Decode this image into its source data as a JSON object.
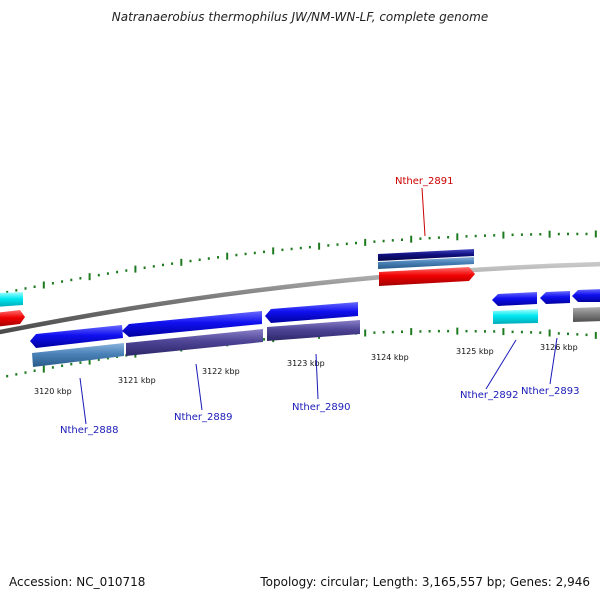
{
  "title": "Natranaerobius thermophilus JW/NM-WN-LF, complete genome",
  "footer": {
    "accession": "Accession: NC_010718",
    "topology": "Topology: circular; Length: 3,165,557 bp; Genes: 2,946"
  },
  "colors": {
    "backbone": "#8a8a8a",
    "tick": "#1e7a1e",
    "label_blue": "#1a1ab8",
    "label_red": "#cc0000"
  },
  "ticks": [
    {
      "label": "3120 kbp"
    },
    {
      "label": "3121 kbp"
    },
    {
      "label": "3122 kbp"
    },
    {
      "label": "3123 kbp"
    },
    {
      "label": "3124 kbp"
    },
    {
      "label": "3125 kbp"
    },
    {
      "label": "3126 kbp"
    }
  ],
  "gene_labels": [
    {
      "text": "Nther_2888"
    },
    {
      "text": "Nther_2889"
    },
    {
      "text": "Nther_2890"
    },
    {
      "text": "Nther_2891"
    },
    {
      "text": "Nther_2892"
    },
    {
      "text": "Nther_2893"
    }
  ]
}
